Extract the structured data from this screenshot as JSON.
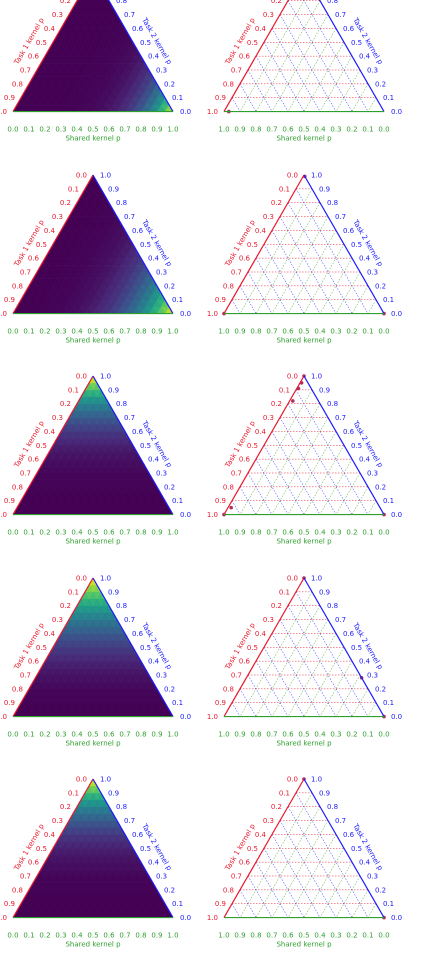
{
  "colors": {
    "left_axis": "#e8192c",
    "right_axis": "#1a1aff",
    "bottom_axis": "#2e9e2e",
    "point": "#b03060",
    "grid_red": "#e8192c",
    "grid_blue": "#1a1aff",
    "grid_green": "#2e9e2e"
  },
  "axis_labels": {
    "left": "Task 1 kernel p",
    "left_bold": "p",
    "right": "Task 2 kernel p",
    "right_bold": "p",
    "bottom": "Shared kernel p",
    "bottom_bold": "p"
  },
  "chart_data": [
    {
      "type": "heatmap",
      "row": 1,
      "column": "left",
      "colormap": "viridis",
      "peak": "shared",
      "peak_corner": "bottom-right",
      "concentration": 22,
      "ticks": [
        "0.0",
        "0.1",
        "0.2",
        "0.3",
        "0.4",
        "0.5",
        "0.6",
        "0.7",
        "0.8",
        "0.9",
        "1.0"
      ]
    },
    {
      "type": "scatter",
      "row": 1,
      "column": "right",
      "grid": true,
      "points": [
        {
          "task1": 0.0,
          "task2": 0.97,
          "shared": 0.03
        }
      ],
      "ticks": [
        "0.0",
        "0.1",
        "0.2",
        "0.3",
        "0.4",
        "0.5",
        "0.6",
        "0.7",
        "0.8",
        "0.9",
        "1.0"
      ]
    },
    {
      "type": "heatmap",
      "row": 2,
      "column": "left",
      "colormap": "viridis",
      "peak": "shared",
      "peak_corner": "bottom-right",
      "concentration": 14,
      "ticks": [
        "0.0",
        "0.1",
        "0.2",
        "0.3",
        "0.4",
        "0.5",
        "0.6",
        "0.7",
        "0.8",
        "0.9",
        "1.0"
      ]
    },
    {
      "type": "scatter",
      "row": 2,
      "column": "right",
      "grid": true,
      "points": [
        {
          "task1": 0.0,
          "task2": 1.0,
          "shared": 0.0
        },
        {
          "task1": 0.0,
          "task2": 0.0,
          "shared": 1.0
        },
        {
          "task1": 0.99,
          "task2": 0.0,
          "shared": 0.01
        }
      ],
      "ticks": [
        "0.0",
        "0.1",
        "0.2",
        "0.3",
        "0.4",
        "0.5",
        "0.6",
        "0.7",
        "0.8",
        "0.9",
        "1.0"
      ]
    },
    {
      "type": "heatmap",
      "row": 3,
      "column": "left",
      "colormap": "viridis",
      "peak": "task1",
      "peak_corner": "top",
      "concentration": 14,
      "ticks": [
        "0.0",
        "0.1",
        "0.2",
        "0.3",
        "0.4",
        "0.5",
        "0.6",
        "0.7",
        "0.8",
        "0.9",
        "1.0"
      ]
    },
    {
      "type": "scatter",
      "row": 3,
      "column": "right",
      "grid": true,
      "points": [
        {
          "task1": 1.0,
          "task2": 0.0,
          "shared": 0.0
        },
        {
          "task1": 0.95,
          "task2": 0.04,
          "shared": 0.01
        },
        {
          "task1": 0.91,
          "task2": 0.08,
          "shared": 0.01
        },
        {
          "task1": 0.82,
          "task2": 0.16,
          "shared": 0.02
        },
        {
          "task1": 0.05,
          "task2": 0.93,
          "shared": 0.02
        },
        {
          "task1": 0.0,
          "task2": 0.0,
          "shared": 1.0
        },
        {
          "task1": 0.0,
          "task2": 1.0,
          "shared": 0.0
        }
      ],
      "ticks": [
        "0.0",
        "0.1",
        "0.2",
        "0.3",
        "0.4",
        "0.5",
        "0.6",
        "0.7",
        "0.8",
        "0.9",
        "1.0"
      ]
    },
    {
      "type": "heatmap",
      "row": 4,
      "column": "left",
      "colormap": "viridis",
      "peak": "task1",
      "peak_corner": "top",
      "concentration": 10,
      "ticks": [
        "0.0",
        "0.1",
        "0.2",
        "0.3",
        "0.4",
        "0.5",
        "0.6",
        "0.7",
        "0.8",
        "0.9",
        "1.0"
      ]
    },
    {
      "type": "scatter",
      "row": 4,
      "column": "right",
      "grid": true,
      "points": [
        {
          "task1": 1.0,
          "task2": 0.0,
          "shared": 0.0
        },
        {
          "task1": 0.28,
          "task2": 0.0,
          "shared": 0.72
        },
        {
          "task1": 0.0,
          "task2": 0.0,
          "shared": 1.0
        }
      ],
      "ticks": [
        "0.0",
        "0.1",
        "0.2",
        "0.3",
        "0.4",
        "0.5",
        "0.6",
        "0.7",
        "0.8",
        "0.9",
        "1.0"
      ]
    },
    {
      "type": "heatmap",
      "row": 5,
      "column": "left",
      "colormap": "viridis",
      "peak": "task1",
      "peak_corner": "top",
      "concentration": 14,
      "ticks": [
        "0.0",
        "0.1",
        "0.2",
        "0.3",
        "0.4",
        "0.5",
        "0.6",
        "0.7",
        "0.8",
        "0.9",
        "1.0"
      ]
    },
    {
      "type": "scatter",
      "row": 5,
      "column": "right",
      "grid": true,
      "points": [
        {
          "task1": 1.0,
          "task2": 0.0,
          "shared": 0.0
        },
        {
          "task1": 0.0,
          "task2": 0.0,
          "shared": 1.0
        }
      ],
      "ticks": [
        "0.0",
        "0.1",
        "0.2",
        "0.3",
        "0.4",
        "0.5",
        "0.6",
        "0.7",
        "0.8",
        "0.9",
        "1.0"
      ]
    }
  ]
}
